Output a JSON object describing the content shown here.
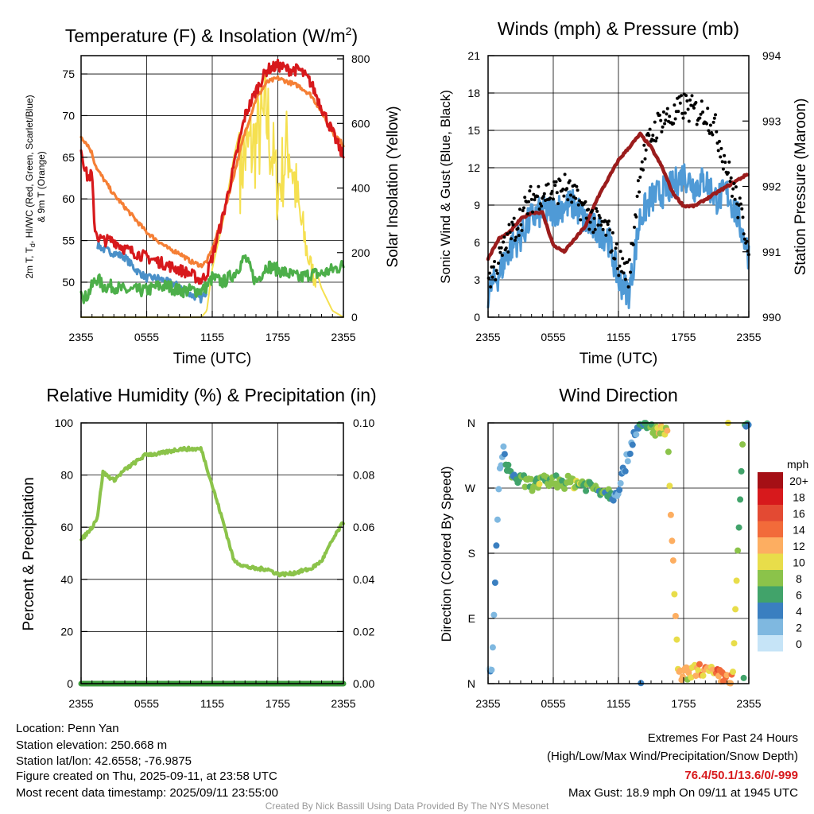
{
  "colors": {
    "red": "#d7191c",
    "green": "#4daf4a",
    "blue": "#4a90c8",
    "orange": "#f57f35",
    "yellow": "#f5e050",
    "sonic": "#4f9ad6",
    "gust": "#000000",
    "pressure": "#9b1c1c",
    "rh": "#8bc34a",
    "precip": "#3b9a3b"
  },
  "time_ticks": [
    "2355",
    "0555",
    "1155",
    "1755",
    "2355"
  ],
  "panels": {
    "temp": {
      "title_main": "Temperature (F) & Insolation (W/m",
      "title_sup": "2",
      "title_close": ")",
      "ylabel_line1": "2m T, T",
      "ylabel_sub": "d",
      "ylabel_rest": ", HI/WC (Red, Green, Scarlet/Blue)",
      "ylabel_line2": "& 9m T (Orange)",
      "y2label": "Solar Insolation (Yellow)",
      "xlabel": "Time (UTC)",
      "yticks": [
        "50",
        "55",
        "60",
        "65",
        "70",
        "75"
      ],
      "y2ticks": [
        "0",
        "200",
        "400",
        "600",
        "800"
      ]
    },
    "wind": {
      "title": "Winds (mph) & Pressure (mb)",
      "ylabel": "Sonic Wind & Gust (Blue, Black)",
      "y2label": "Station Pressure (Maroon)",
      "xlabel": "Time (UTC)",
      "yticks": [
        "0",
        "3",
        "6",
        "9",
        "12",
        "15",
        "18",
        "21"
      ],
      "y2ticks": [
        "990",
        "991",
        "992",
        "993",
        "994"
      ]
    },
    "rh": {
      "title": "Relative Humidity (%) & Precipitation (in)",
      "ylabel": "Percent & Precipitation",
      "yticks": [
        "0",
        "20",
        "40",
        "60",
        "80",
        "100"
      ],
      "y2ticks": [
        "0.00",
        "0.02",
        "0.04",
        "0.06",
        "0.08",
        "0.10"
      ]
    },
    "dir": {
      "title": "Wind Direction",
      "ylabel": "Direction (Colored By Speed)",
      "yticks": [
        "N",
        "E",
        "S",
        "W",
        "N"
      ],
      "legend_title": "mph",
      "legend_labels": [
        "20+",
        "18",
        "16",
        "14",
        "12",
        "10",
        "8",
        "6",
        "4",
        "2",
        "0"
      ],
      "legend_colors": [
        "#a50f15",
        "#d7191c",
        "#e34a33",
        "#f26b3a",
        "#fdae61",
        "#e8dd4a",
        "#8bc34a",
        "#41a36a",
        "#3a7fc0",
        "#7fb8e0",
        "#c6e4f7"
      ]
    }
  },
  "footer": {
    "location": "Location: Penn Yan",
    "elevation": "Station elevation: 250.668 m",
    "latlon": "Station lat/lon: 42.6558; -76.9875",
    "created": "Figure created on Thu, 2025-09-11, at 23:58 UTC",
    "recent": "Most recent data timestamp: 2025/09/11 23:55:00",
    "extremes_title": "Extremes For Past 24 Hours",
    "extremes_sub": "(High/Low/Max Wind/Precipitation/Snow Depth)",
    "extremes_values": "76.4/50.1/13.6/0/-999",
    "max_gust": "Max Gust: 18.9 mph On 09/11 at 1945 UTC"
  },
  "credit": "Created By Nick Bassill Using Data Provided By The NYS Mesonet",
  "chart_data": [
    {
      "type": "line",
      "title": "Temperature (F) & Insolation (W/m2)",
      "xlabel": "Time (UTC)",
      "ylabel": "2m T, Td, HI/WC (Red, Green, Scarlet/Blue) & 9m T (Orange)",
      "y2label": "Solar Insolation (Yellow)",
      "ylim": [
        45.8,
        77.2
      ],
      "y2lim": [
        0,
        810
      ],
      "x_hours_since_2355": [
        0,
        0.3,
        0.6,
        1,
        1.2,
        1.5,
        2,
        3,
        4,
        5,
        6,
        7,
        8,
        9,
        10,
        11,
        11.5,
        12,
        13,
        14,
        15,
        16,
        17,
        18,
        19,
        20,
        21,
        22,
        23,
        24
      ],
      "series": [
        {
          "name": "2m T",
          "values": [
            66,
            64,
            62.5,
            63,
            57,
            55.5,
            55,
            55,
            54,
            53.5,
            53,
            52.5,
            52,
            51.5,
            51,
            50.2,
            51,
            53,
            58,
            64,
            70,
            73,
            75.5,
            76,
            75.5,
            75.5,
            74,
            71,
            68,
            65
          ]
        },
        {
          "name": "9m T",
          "values": [
            67.5,
            67,
            66.5,
            65.5,
            64.5,
            63.5,
            62.5,
            60.5,
            59,
            57.5,
            56,
            55,
            54,
            53.5,
            52.5,
            52,
            52.5,
            54,
            58,
            63,
            68,
            72,
            74,
            74.5,
            74,
            73.5,
            72.5,
            70.5,
            68,
            66.5
          ]
        },
        {
          "name": "Td",
          "values": [
            49.5,
            48,
            48.5,
            49.5,
            50,
            50.5,
            49.5,
            49.5,
            49,
            49,
            49,
            49.5,
            49.5,
            49,
            49,
            49,
            49.5,
            50.5,
            50,
            51,
            53,
            50,
            52,
            51.5,
            51,
            50.5,
            51,
            51,
            51.5,
            52
          ]
        },
        {
          "name": "HI/WC",
          "values": [
            null,
            null,
            null,
            null,
            null,
            54.5,
            54,
            53.5,
            53,
            51.5,
            50.5,
            50.5,
            50,
            49.5,
            48.5,
            48,
            49,
            null,
            null,
            null,
            null,
            null,
            null,
            null,
            null,
            null,
            null,
            null,
            null,
            null
          ]
        },
        {
          "name": "Solar Insolation",
          "values": [
            0,
            0,
            0,
            0,
            0,
            0,
            0,
            0,
            0,
            0,
            0,
            0,
            0,
            0,
            0,
            0,
            20,
            150,
            300,
            500,
            650,
            700,
            800,
            500,
            700,
            400,
            200,
            90,
            20,
            0
          ]
        }
      ]
    },
    {
      "type": "line",
      "title": "Winds (mph) & Pressure (mb)",
      "xlabel": "Time (UTC)",
      "ylabel": "Sonic Wind & Gust (Blue, Black)",
      "y2label": "Station Pressure (Maroon)",
      "ylim": [
        0,
        21
      ],
      "y2lim": [
        990,
        994
      ],
      "x_hours_since_2355": [
        0,
        1,
        2,
        3,
        4,
        5,
        6,
        7,
        8,
        9,
        10,
        11,
        12,
        13,
        14,
        15,
        16,
        17,
        18,
        19,
        20,
        21,
        22,
        23,
        24
      ],
      "series": [
        {
          "name": "Sonic Wind",
          "values": [
            2,
            3.5,
            5.5,
            6.5,
            8,
            8.5,
            8.5,
            9,
            9,
            7.5,
            7,
            6.5,
            3,
            2,
            8,
            9.5,
            10,
            10.5,
            11.5,
            10.5,
            11,
            9.5,
            10,
            8,
            5
          ]
        },
        {
          "name": "Gust",
          "values": [
            3,
            4.5,
            6.5,
            8,
            9.5,
            10,
            10,
            10.5,
            9.5,
            8.5,
            7.5,
            7,
            4.5,
            3.5,
            12,
            14.5,
            16,
            16,
            17,
            16.5,
            16.5,
            15,
            12,
            9,
            6
          ]
        },
        {
          "name": "Station Pressure",
          "values": [
            990.9,
            991.2,
            991.3,
            991.5,
            991.6,
            991.6,
            991.1,
            991.0,
            991.2,
            991.4,
            991.8,
            992.1,
            992.4,
            992.6,
            992.8,
            992.6,
            992.3,
            991.9,
            991.7,
            991.7,
            991.8,
            991.9,
            992.0,
            992.1,
            992.2
          ]
        }
      ]
    },
    {
      "type": "line",
      "title": "Relative Humidity (%) & Precipitation (in)",
      "ylabel": "Percent & Precipitation",
      "ylim": [
        0,
        100
      ],
      "y2lim": [
        0,
        0.1
      ],
      "x_hours_since_2355": [
        0,
        1,
        1.5,
        2,
        3,
        4,
        5,
        6,
        7,
        8,
        9,
        10,
        11,
        12,
        13,
        14,
        15,
        16,
        17,
        18,
        19,
        20,
        21,
        22,
        23,
        24
      ],
      "series": [
        {
          "name": "RH",
          "values": [
            55,
            60,
            64,
            81,
            78,
            82,
            85,
            88,
            88,
            89,
            90,
            90,
            90,
            76,
            62,
            47,
            45,
            44,
            44,
            42,
            42,
            43,
            44,
            47,
            55,
            62
          ]
        },
        {
          "name": "Precipitation",
          "values": [
            0,
            0,
            0,
            0,
            0,
            0,
            0,
            0,
            0,
            0,
            0,
            0,
            0,
            0,
            0,
            0,
            0,
            0,
            0,
            0,
            0,
            0,
            0,
            0,
            0,
            0
          ]
        }
      ]
    },
    {
      "type": "scatter",
      "title": "Wind Direction",
      "ylabel": "Direction (Colored By Speed)",
      "ylim": [
        0,
        360
      ],
      "x_hours_since_2355": [
        0.1,
        0.4,
        1.0,
        1.4,
        2.0,
        3.0,
        4.0,
        5.0,
        6.0,
        7.0,
        8.0,
        9.0,
        10.0,
        11.0,
        11.5,
        12.0,
        13.0,
        13.5,
        14.5,
        15.5,
        16.5,
        17.5,
        18.5,
        19.5,
        20.5,
        21.5,
        22.5,
        23.5,
        24.0
      ],
      "direction_deg": [
        20,
        30,
        285,
        320,
        290,
        280,
        275,
        278,
        280,
        278,
        278,
        275,
        270,
        265,
        260,
        270,
        320,
        350,
        355,
        350,
        345,
        10,
        15,
        20,
        15,
        10,
        5,
        360,
        355
      ],
      "speed_mph": [
        2,
        2,
        2,
        3,
        5,
        7,
        7,
        8,
        7,
        8,
        9,
        7,
        7,
        6,
        4,
        3,
        3,
        3,
        6,
        9,
        10,
        12,
        10,
        13,
        12,
        14,
        12,
        6,
        4
      ]
    }
  ]
}
